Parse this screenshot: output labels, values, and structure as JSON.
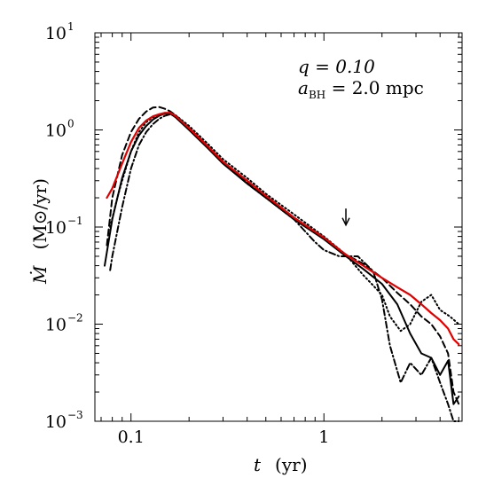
{
  "chart_data": {
    "type": "line",
    "x_scale": "log",
    "y_scale": "log",
    "xlim": [
      0.065,
      5.2
    ],
    "ylim": [
      0.001,
      10
    ],
    "x_ticks": [
      {
        "value": 0.1,
        "label": "0.1"
      },
      {
        "value": 1,
        "label": "1"
      }
    ],
    "y_ticks": [
      {
        "value": 10,
        "base": "10",
        "exp": "1"
      },
      {
        "value": 1,
        "base": "10",
        "exp": "0"
      },
      {
        "value": 0.1,
        "base": "10",
        "exp": "−1"
      },
      {
        "value": 0.01,
        "base": "10",
        "exp": "−2"
      },
      {
        "value": 0.001,
        "base": "10",
        "exp": "−3"
      }
    ],
    "xlabel": {
      "symbol": "t",
      "unit": "(yr)"
    },
    "ylabel": {
      "symbol": "Ṁ",
      "unit": "(M⊙/yr)"
    },
    "annotation": {
      "line1": "q = 0.10",
      "line2_main": "a",
      "line2_sub": "BH",
      "line2_rest": " = 2.0 mpc"
    },
    "arrow": {
      "x": 1.3,
      "y_top": 0.155,
      "y_bottom": 0.105
    },
    "grid": false,
    "legend": "none",
    "series": [
      {
        "style": "solid",
        "color": "#000000",
        "x": [
          0.073,
          0.08,
          0.09,
          0.1,
          0.11,
          0.12,
          0.13,
          0.14,
          0.15,
          0.16,
          0.17,
          0.2,
          0.25,
          0.3,
          0.4,
          0.5,
          0.7,
          1.0,
          1.3,
          1.6,
          2.0,
          2.4,
          2.8,
          3.2,
          3.6,
          4.0,
          4.4,
          4.7,
          5.0
        ],
        "y": [
          0.04,
          0.12,
          0.32,
          0.6,
          0.88,
          1.1,
          1.28,
          1.4,
          1.48,
          1.47,
          1.35,
          1.0,
          0.65,
          0.45,
          0.28,
          0.2,
          0.12,
          0.075,
          0.05,
          0.037,
          0.026,
          0.016,
          0.008,
          0.005,
          0.0045,
          0.003,
          0.0042,
          0.0015,
          0.0018
        ]
      },
      {
        "style": "dashed",
        "color": "#000000",
        "x": [
          0.075,
          0.08,
          0.09,
          0.1,
          0.11,
          0.12,
          0.13,
          0.14,
          0.15,
          0.16,
          0.17,
          0.2,
          0.25,
          0.3,
          0.4,
          0.5,
          0.7,
          1.0,
          1.3,
          1.6,
          2.0,
          2.4,
          2.8,
          3.2,
          3.6,
          4.0,
          4.4,
          4.7,
          5.0
        ],
        "y": [
          0.065,
          0.2,
          0.55,
          0.95,
          1.3,
          1.55,
          1.7,
          1.72,
          1.65,
          1.55,
          1.42,
          1.05,
          0.68,
          0.47,
          0.29,
          0.21,
          0.125,
          0.078,
          0.052,
          0.042,
          0.03,
          0.021,
          0.016,
          0.012,
          0.01,
          0.0075,
          0.005,
          0.002,
          0.0015
        ]
      },
      {
        "style": "dotted",
        "color": "#000000",
        "x": [
          0.078,
          0.085,
          0.09,
          0.1,
          0.11,
          0.12,
          0.13,
          0.14,
          0.15,
          0.16,
          0.17,
          0.2,
          0.25,
          0.3,
          0.4,
          0.5,
          0.7,
          1.0,
          1.3,
          1.6,
          1.8,
          2.0,
          2.2,
          2.5,
          2.8,
          3.2,
          3.6,
          4.0,
          4.5,
          5.0
        ],
        "y": [
          0.1,
          0.2,
          0.3,
          0.6,
          0.95,
          1.2,
          1.35,
          1.42,
          1.48,
          1.5,
          1.42,
          1.1,
          0.72,
          0.5,
          0.32,
          0.22,
          0.135,
          0.08,
          0.052,
          0.032,
          0.025,
          0.02,
          0.012,
          0.0085,
          0.01,
          0.017,
          0.02,
          0.014,
          0.012,
          0.01
        ]
      },
      {
        "style": "dashdot",
        "color": "#000000",
        "x": [
          0.078,
          0.08,
          0.09,
          0.1,
          0.11,
          0.12,
          0.13,
          0.14,
          0.15,
          0.16,
          0.17,
          0.2,
          0.25,
          0.3,
          0.4,
          0.5,
          0.7,
          0.9,
          1.0,
          1.2,
          1.5,
          1.8,
          2.0,
          2.2,
          2.5,
          2.8,
          3.2,
          3.6,
          4.0,
          4.4,
          4.7,
          5.0
        ],
        "y": [
          0.036,
          0.05,
          0.16,
          0.4,
          0.7,
          0.95,
          1.15,
          1.3,
          1.4,
          1.45,
          1.38,
          1.05,
          0.68,
          0.46,
          0.28,
          0.2,
          0.12,
          0.07,
          0.058,
          0.05,
          0.05,
          0.035,
          0.018,
          0.006,
          0.0025,
          0.004,
          0.003,
          0.0045,
          0.0025,
          0.0015,
          0.001,
          0.001
        ]
      },
      {
        "style": "solid",
        "color": "#e00000",
        "x": [
          0.075,
          0.08,
          0.09,
          0.1,
          0.11,
          0.12,
          0.13,
          0.14,
          0.15,
          0.16,
          0.17,
          0.2,
          0.25,
          0.3,
          0.4,
          0.5,
          0.7,
          1.0,
          1.3,
          1.6,
          2.0,
          2.4,
          2.8,
          3.2,
          3.6,
          4.0,
          4.4,
          4.7,
          5.0
        ],
        "y": [
          0.2,
          0.25,
          0.45,
          0.75,
          1.05,
          1.25,
          1.38,
          1.45,
          1.5,
          1.5,
          1.4,
          1.04,
          0.68,
          0.47,
          0.3,
          0.21,
          0.125,
          0.078,
          0.052,
          0.04,
          0.03,
          0.024,
          0.02,
          0.016,
          0.013,
          0.011,
          0.009,
          0.007,
          0.0062
        ]
      }
    ]
  }
}
